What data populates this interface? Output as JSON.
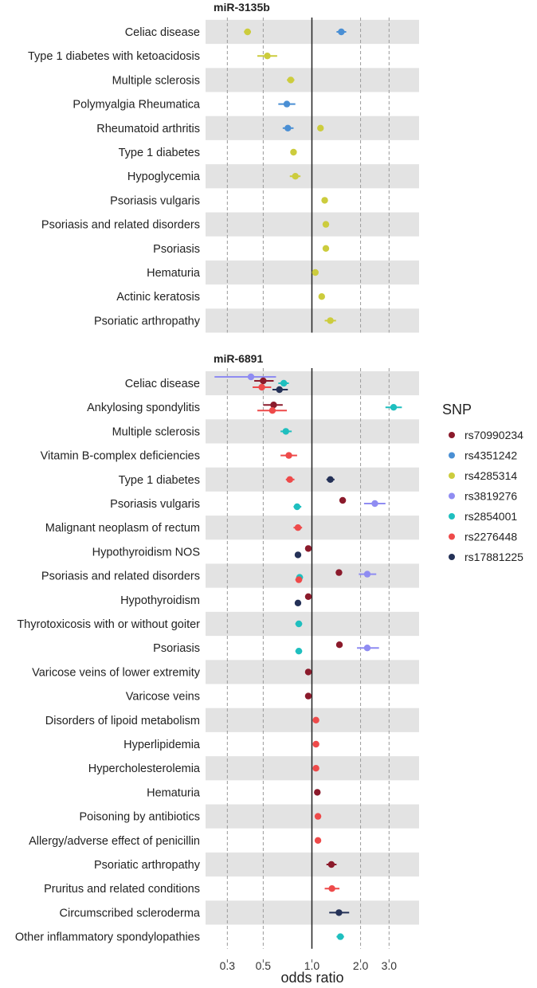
{
  "chart_data": {
    "type": "scatter",
    "subtype": "forest-plot-log-scale",
    "xlabel": "odds ratio",
    "x_scale": "log",
    "xlim": [
      0.22,
      4.6
    ],
    "x_ticks": [
      0.3,
      0.5,
      1.0,
      2.0,
      3.0
    ],
    "x_tick_labels": [
      "0.3",
      "0.5",
      "1.0",
      "2.0",
      "3.0"
    ],
    "reference_line": 1.0,
    "legend": {
      "title": "SNP",
      "placement": "right",
      "items": [
        {
          "name": "rs70990234",
          "color": "#8b1a2b"
        },
        {
          "name": "rs4351242",
          "color": "#4a8fd4"
        },
        {
          "name": "rs4285314",
          "color": "#cccc3d"
        },
        {
          "name": "rs3819276",
          "color": "#8f8cf2"
        },
        {
          "name": "rs2854001",
          "color": "#1fbfbf"
        },
        {
          "name": "rs2276448",
          "color": "#ee4a4a"
        },
        {
          "name": "rs17881225",
          "color": "#243157"
        }
      ]
    },
    "panels": [
      {
        "title": "miR-3135b",
        "rows": [
          {
            "label": "Celiac disease",
            "points": [
              {
                "snp": "rs4351242",
                "or": 1.52,
                "lo": 1.42,
                "hi": 1.63
              },
              {
                "snp": "rs4285314",
                "or": 0.4,
                "lo": 0.38,
                "hi": 0.42
              }
            ]
          },
          {
            "label": "Type 1 diabetes with ketoacidosis",
            "points": [
              {
                "snp": "rs4285314",
                "or": 0.53,
                "lo": 0.46,
                "hi": 0.61
              }
            ]
          },
          {
            "label": "Multiple sclerosis",
            "points": [
              {
                "snp": "rs4285314",
                "or": 0.74,
                "lo": 0.7,
                "hi": 0.78
              }
            ]
          },
          {
            "label": "Polymyalgia Rheumatica",
            "points": [
              {
                "snp": "rs4351242",
                "or": 0.7,
                "lo": 0.62,
                "hi": 0.79
              }
            ]
          },
          {
            "label": "Rheumatoid arthritis",
            "points": [
              {
                "snp": "rs4351242",
                "or": 0.71,
                "lo": 0.66,
                "hi": 0.77
              },
              {
                "snp": "rs4285314",
                "or": 1.13,
                "lo": 1.1,
                "hi": 1.16
              }
            ]
          },
          {
            "label": "Type 1 diabetes",
            "points": [
              {
                "snp": "rs4285314",
                "or": 0.77,
                "lo": 0.74,
                "hi": 0.8
              }
            ]
          },
          {
            "label": "Hypoglycemia",
            "points": [
              {
                "snp": "rs4285314",
                "or": 0.79,
                "lo": 0.73,
                "hi": 0.85
              }
            ]
          },
          {
            "label": "Psoriasis vulgaris",
            "points": [
              {
                "snp": "rs4285314",
                "or": 1.2,
                "lo": 1.15,
                "hi": 1.25
              }
            ]
          },
          {
            "label": "Psoriasis and related disorders",
            "points": [
              {
                "snp": "rs4285314",
                "or": 1.22,
                "lo": 1.18,
                "hi": 1.27
              }
            ]
          },
          {
            "label": "Psoriasis",
            "points": [
              {
                "snp": "rs4285314",
                "or": 1.22,
                "lo": 1.18,
                "hi": 1.27
              }
            ]
          },
          {
            "label": "Hematuria",
            "points": [
              {
                "snp": "rs4285314",
                "or": 1.05,
                "lo": 1.03,
                "hi": 1.07
              }
            ]
          },
          {
            "label": "Actinic keratosis",
            "points": [
              {
                "snp": "rs4285314",
                "or": 1.15,
                "lo": 1.11,
                "hi": 1.19
              }
            ]
          },
          {
            "label": "Psoriatic arthropathy",
            "points": [
              {
                "snp": "rs4285314",
                "or": 1.3,
                "lo": 1.2,
                "hi": 1.41
              }
            ]
          }
        ]
      },
      {
        "title": "miR-6891",
        "rows": [
          {
            "label": "Celiac disease",
            "points": [
              {
                "snp": "rs3819276",
                "or": 0.42,
                "lo": 0.25,
                "hi": 0.6,
                "dy": -8
              },
              {
                "snp": "rs70990234",
                "or": 0.5,
                "lo": 0.44,
                "hi": 0.58,
                "dy": -3
              },
              {
                "snp": "rs2854001",
                "or": 0.67,
                "lo": 0.62,
                "hi": 0.72,
                "dy": 0
              },
              {
                "snp": "rs2276448",
                "or": 0.49,
                "lo": 0.43,
                "hi": 0.56,
                "dy": 5
              },
              {
                "snp": "rs17881225",
                "or": 0.63,
                "lo": 0.57,
                "hi": 0.71,
                "dy": 8
              }
            ]
          },
          {
            "label": "Ankylosing spondylitis",
            "points": [
              {
                "snp": "rs2854001",
                "or": 3.2,
                "lo": 2.85,
                "hi": 3.6,
                "dy": 0
              },
              {
                "snp": "rs70990234",
                "or": 0.58,
                "lo": 0.5,
                "hi": 0.66,
                "dy": -3
              },
              {
                "snp": "rs2276448",
                "or": 0.57,
                "lo": 0.46,
                "hi": 0.7,
                "dy": 4
              }
            ]
          },
          {
            "label": "Multiple sclerosis",
            "points": [
              {
                "snp": "rs2854001",
                "or": 0.69,
                "lo": 0.64,
                "hi": 0.75
              }
            ]
          },
          {
            "label": "Vitamin B-complex deficiencies",
            "points": [
              {
                "snp": "rs2276448",
                "or": 0.72,
                "lo": 0.64,
                "hi": 0.81
              }
            ]
          },
          {
            "label": "Type 1 diabetes",
            "points": [
              {
                "snp": "rs2276448",
                "or": 0.73,
                "lo": 0.69,
                "hi": 0.78
              },
              {
                "snp": "rs17881225",
                "or": 1.3,
                "lo": 1.23,
                "hi": 1.38
              }
            ]
          },
          {
            "label": "Psoriasis vulgaris",
            "points": [
              {
                "snp": "rs70990234",
                "or": 1.55,
                "lo": 1.48,
                "hi": 1.62,
                "dy": -4
              },
              {
                "snp": "rs3819276",
                "or": 2.45,
                "lo": 2.1,
                "hi": 2.85,
                "dy": 0
              },
              {
                "snp": "rs2854001",
                "or": 0.81,
                "lo": 0.77,
                "hi": 0.86,
                "dy": 4
              }
            ]
          },
          {
            "label": "Malignant neoplasm of rectum",
            "points": [
              {
                "snp": "rs2276448",
                "or": 0.82,
                "lo": 0.77,
                "hi": 0.87
              }
            ]
          },
          {
            "label": "Hypothyroidism NOS",
            "points": [
              {
                "snp": "rs70990234",
                "or": 0.95,
                "lo": 0.93,
                "hi": 0.97,
                "dy": -4
              },
              {
                "snp": "rs17881225",
                "or": 0.82,
                "lo": 0.8,
                "hi": 0.84,
                "dy": 4
              }
            ]
          },
          {
            "label": "Psoriasis and related disorders",
            "points": [
              {
                "snp": "rs70990234",
                "or": 1.47,
                "lo": 1.41,
                "hi": 1.53,
                "dy": -4
              },
              {
                "snp": "rs3819276",
                "or": 2.2,
                "lo": 1.95,
                "hi": 2.5,
                "dy": -2
              },
              {
                "snp": "rs2854001",
                "or": 0.84,
                "lo": 0.8,
                "hi": 0.88,
                "dy": 2
              },
              {
                "snp": "rs2276448",
                "or": 0.83,
                "lo": 0.79,
                "hi": 0.87,
                "dy": 5
              }
            ]
          },
          {
            "label": "Hypothyroidism",
            "points": [
              {
                "snp": "rs70990234",
                "or": 0.95,
                "lo": 0.93,
                "hi": 0.97,
                "dy": -4
              },
              {
                "snp": "rs17881225",
                "or": 0.82,
                "lo": 0.8,
                "hi": 0.84,
                "dy": 4
              }
            ]
          },
          {
            "label": "Thyrotoxicosis with or without goiter",
            "points": [
              {
                "snp": "rs2854001",
                "or": 0.83,
                "lo": 0.79,
                "hi": 0.87
              }
            ]
          },
          {
            "label": "Psoriasis",
            "points": [
              {
                "snp": "rs70990234",
                "or": 1.48,
                "lo": 1.42,
                "hi": 1.54,
                "dy": -4
              },
              {
                "snp": "rs3819276",
                "or": 2.2,
                "lo": 1.9,
                "hi": 2.6,
                "dy": 0
              },
              {
                "snp": "rs2854001",
                "or": 0.83,
                "lo": 0.79,
                "hi": 0.87,
                "dy": 4
              }
            ]
          },
          {
            "label": "Varicose veins of lower extremity",
            "points": [
              {
                "snp": "rs70990234",
                "or": 0.95,
                "lo": 0.93,
                "hi": 0.97
              }
            ]
          },
          {
            "label": "Varicose veins",
            "points": [
              {
                "snp": "rs70990234",
                "or": 0.95,
                "lo": 0.93,
                "hi": 0.97
              }
            ]
          },
          {
            "label": "Disorders of lipoid metabolism",
            "points": [
              {
                "snp": "rs2276448",
                "or": 1.06,
                "lo": 1.04,
                "hi": 1.08
              }
            ]
          },
          {
            "label": "Hyperlipidemia",
            "points": [
              {
                "snp": "rs2276448",
                "or": 1.06,
                "lo": 1.04,
                "hi": 1.08
              }
            ]
          },
          {
            "label": "Hypercholesterolemia",
            "points": [
              {
                "snp": "rs2276448",
                "or": 1.06,
                "lo": 1.04,
                "hi": 1.08
              }
            ]
          },
          {
            "label": "Hematuria",
            "points": [
              {
                "snp": "rs70990234",
                "or": 1.08,
                "lo": 1.06,
                "hi": 1.1
              }
            ]
          },
          {
            "label": "Poisoning by antibiotics",
            "points": [
              {
                "snp": "rs2276448",
                "or": 1.09,
                "lo": 1.07,
                "hi": 1.11
              }
            ]
          },
          {
            "label": "Allergy/adverse effect of penicillin",
            "points": [
              {
                "snp": "rs2276448",
                "or": 1.09,
                "lo": 1.07,
                "hi": 1.11
              }
            ]
          },
          {
            "label": "Psoriatic arthropathy",
            "points": [
              {
                "snp": "rs70990234",
                "or": 1.32,
                "lo": 1.23,
                "hi": 1.42
              }
            ]
          },
          {
            "label": "Pruritus and related conditions",
            "points": [
              {
                "snp": "rs2276448",
                "or": 1.33,
                "lo": 1.2,
                "hi": 1.48
              }
            ]
          },
          {
            "label": "Circumscribed scleroderma",
            "points": [
              {
                "snp": "rs17881225",
                "or": 1.47,
                "lo": 1.28,
                "hi": 1.7
              }
            ]
          },
          {
            "label": "Other inflammatory spondylopathies",
            "points": [
              {
                "snp": "rs2854001",
                "or": 1.5,
                "lo": 1.42,
                "hi": 1.58
              }
            ]
          }
        ]
      }
    ]
  }
}
